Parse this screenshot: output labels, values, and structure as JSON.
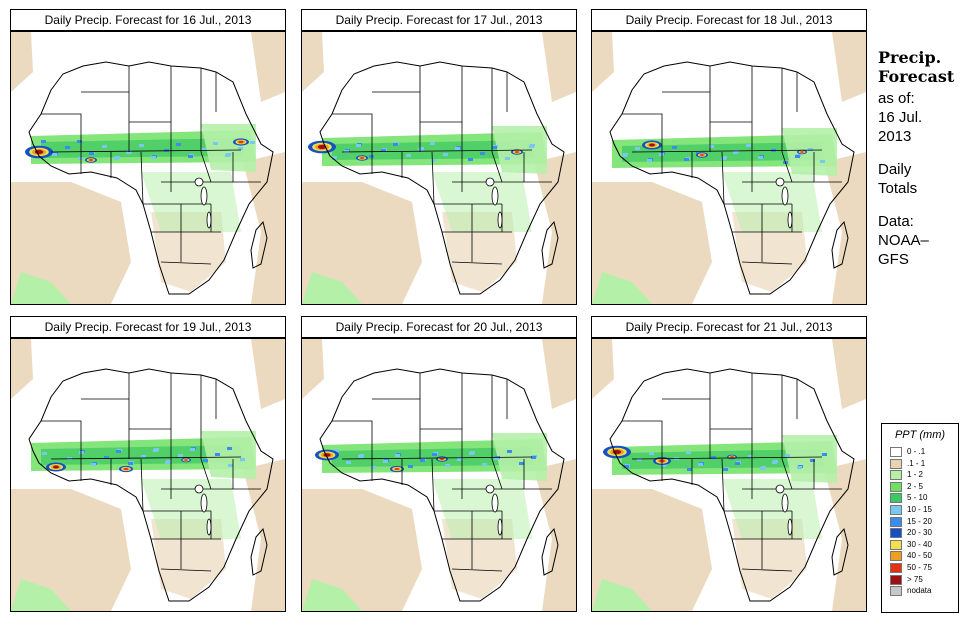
{
  "panels": [
    {
      "title": "Daily Precip. Forecast for  16 Jul., 2013"
    },
    {
      "title": "Daily Precip. Forecast for  17 Jul., 2013"
    },
    {
      "title": "Daily Precip. Forecast for  18 Jul., 2013"
    },
    {
      "title": "Daily Precip. Forecast for  19 Jul., 2013"
    },
    {
      "title": "Daily Precip. Forecast for  20 Jul., 2013"
    },
    {
      "title": "Daily Precip. Forecast for  21 Jul., 2013"
    }
  ],
  "side": {
    "head1": "Precip.",
    "head2": "Forecast",
    "asof1": "as of:",
    "asof2": "16 Jul.",
    "asof3": "2013",
    "daily1": "Daily",
    "daily2": "Totals",
    "data1": "Data:",
    "data2": "NOAA–",
    "data3": "GFS"
  },
  "legend": {
    "title": "PPT (mm)",
    "items": [
      {
        "label": "0 - .1",
        "color": "#ffffff"
      },
      {
        "label": ".1 - 1",
        "color": "#e8d3b4"
      },
      {
        "label": "1 - 2",
        "color": "#b4f0a8"
      },
      {
        "label": "2 - 5",
        "color": "#6ee064"
      },
      {
        "label": "5 - 10",
        "color": "#3cc862"
      },
      {
        "label": "10 - 15",
        "color": "#78c8f0"
      },
      {
        "label": "15 - 20",
        "color": "#3c8cf0"
      },
      {
        "label": "20 - 30",
        "color": "#1450c8"
      },
      {
        "label": "30 - 40",
        "color": "#f0e050"
      },
      {
        "label": "40 - 50",
        "color": "#f0a020"
      },
      {
        "label": "50 - 75",
        "color": "#e83018"
      },
      {
        "label": "> 75",
        "color": "#a01010"
      },
      {
        "label": "nodata",
        "color": "#c8c8c8"
      }
    ]
  }
}
